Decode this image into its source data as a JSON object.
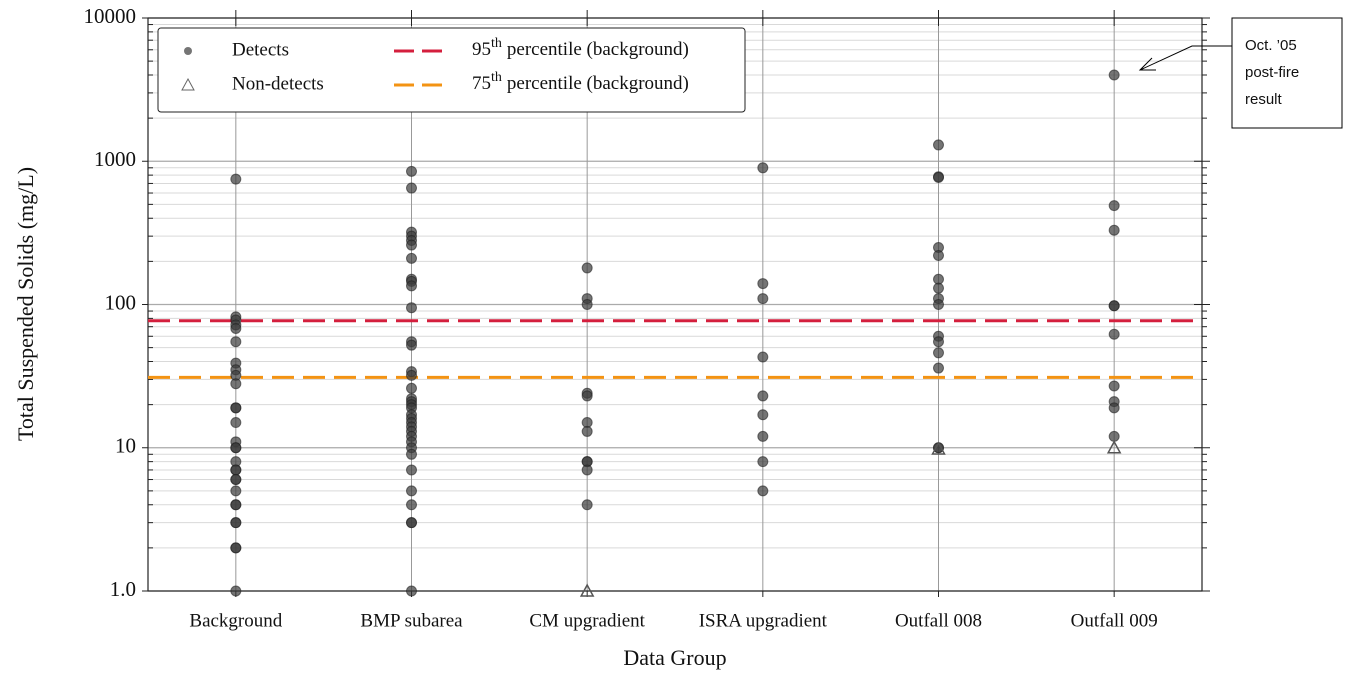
{
  "chart_data": {
    "type": "strip",
    "y_label": "Total Suspended Solids (mg/L)",
    "x_label": "Data Group",
    "categories": [
      "Background",
      "BMP subarea",
      "CM upgradient",
      "ISRA upgradient",
      "Outfall 008",
      "Outfall 009"
    ],
    "log_scale": true,
    "grid": true,
    "minor_grid": true,
    "ylim": [
      1,
      10000
    ],
    "yticks": [
      {
        "value": 1,
        "label": "1.0"
      },
      10,
      100,
      1000,
      10000
    ],
    "series": [
      {
        "name": "Detects",
        "marker": "circle",
        "color": "#3a3a3a",
        "values": [
          [
            750,
            82,
            78,
            72,
            68,
            55,
            39,
            35,
            32,
            28,
            19,
            19,
            15,
            11,
            10,
            10,
            8,
            7,
            7,
            6,
            6,
            5,
            4,
            4,
            3,
            3,
            2,
            2,
            1
          ],
          [
            850,
            650,
            320,
            300,
            280,
            260,
            210,
            150,
            145,
            135,
            95,
            55,
            52,
            34,
            32,
            26,
            22,
            21,
            20,
            19,
            17,
            16,
            15,
            14,
            13,
            12,
            11,
            10,
            9,
            7,
            5,
            4,
            3,
            3,
            1
          ],
          [
            180,
            110,
            100,
            24,
            23,
            15,
            13,
            8,
            8,
            7,
            4
          ],
          [
            900,
            140,
            110,
            43,
            23,
            17,
            12,
            8,
            5
          ],
          [
            1300,
            780,
            770,
            250,
            220,
            150,
            130,
            110,
            100,
            60,
            55,
            46,
            36,
            10,
            10
          ],
          [
            4000,
            490,
            330,
            98,
            98,
            62,
            27,
            21,
            19,
            12
          ]
        ]
      },
      {
        "name": "Non-detects",
        "marker": "triangle",
        "color": "#555555",
        "values": [
          [],
          [],
          [
            1
          ],
          [],
          [
            9.8
          ],
          [
            10
          ]
        ]
      }
    ],
    "reference_lines": [
      {
        "label": "95",
        "sup": "th",
        "rest": "percentile (background)",
        "value": 77,
        "color": "#d41f3d"
      },
      {
        "label": "75",
        "sup": "th",
        "rest": "percentile (background)",
        "value": 31,
        "color": "#f39313"
      }
    ],
    "annotation": {
      "lines": [
        "Oct. ’05",
        "post-fire",
        "result"
      ]
    }
  }
}
